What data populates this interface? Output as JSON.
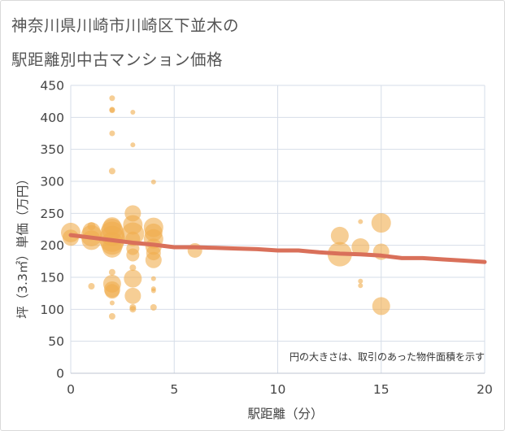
{
  "title_line1": "神奈川県川崎市川崎区下並木の",
  "title_line2": "駅距離別中古マンション価格",
  "chart_data": {
    "type": "scatter",
    "title": "神奈川県川崎市川崎区下並木の駅距離別中古マンション価格",
    "xlabel": "駅距離（分）",
    "ylabel": "坪（3.3㎡）単価（万円）",
    "xlim": [
      0,
      20
    ],
    "ylim": [
      0,
      450
    ],
    "xticks": [
      0,
      5,
      10,
      15,
      20
    ],
    "yticks": [
      0,
      50,
      100,
      150,
      200,
      250,
      300,
      350,
      400,
      450
    ],
    "note": "円の大きさは、取引のあった物件面積を示す",
    "colors": {
      "bubble": "#f0ad4e",
      "trend": "#d9705a",
      "grid": "#d6dde8"
    },
    "series": [
      {
        "name": "取引",
        "points": [
          {
            "x": 0,
            "y": 220,
            "s": 12
          },
          {
            "x": 0,
            "y": 212,
            "s": 10
          },
          {
            "x": 1,
            "y": 222,
            "s": 11
          },
          {
            "x": 1,
            "y": 215,
            "s": 13
          },
          {
            "x": 1,
            "y": 208,
            "s": 12
          },
          {
            "x": 1,
            "y": 230,
            "s": 5
          },
          {
            "x": 1,
            "y": 136,
            "s": 4
          },
          {
            "x": 2,
            "y": 430,
            "s": 3.5
          },
          {
            "x": 2,
            "y": 412,
            "s": 3.5
          },
          {
            "x": 2,
            "y": 411,
            "s": 3.5
          },
          {
            "x": 2,
            "y": 375,
            "s": 3.5
          },
          {
            "x": 2,
            "y": 316,
            "s": 4
          },
          {
            "x": 2,
            "y": 230,
            "s": 11
          },
          {
            "x": 2,
            "y": 225,
            "s": 13
          },
          {
            "x": 2,
            "y": 218,
            "s": 15
          },
          {
            "x": 2,
            "y": 210,
            "s": 16
          },
          {
            "x": 2,
            "y": 203,
            "s": 14
          },
          {
            "x": 2,
            "y": 196,
            "s": 12
          },
          {
            "x": 2,
            "y": 158,
            "s": 4
          },
          {
            "x": 2,
            "y": 140,
            "s": 11
          },
          {
            "x": 2,
            "y": 131,
            "s": 10
          },
          {
            "x": 2,
            "y": 128,
            "s": 9
          },
          {
            "x": 2,
            "y": 110,
            "s": 3
          },
          {
            "x": 2,
            "y": 89,
            "s": 4
          },
          {
            "x": 3,
            "y": 408,
            "s": 3
          },
          {
            "x": 3,
            "y": 357,
            "s": 3
          },
          {
            "x": 3,
            "y": 250,
            "s": 10
          },
          {
            "x": 3,
            "y": 232,
            "s": 12
          },
          {
            "x": 3,
            "y": 218,
            "s": 14
          },
          {
            "x": 3,
            "y": 210,
            "s": 9
          },
          {
            "x": 3,
            "y": 195,
            "s": 8
          },
          {
            "x": 3,
            "y": 185,
            "s": 8
          },
          {
            "x": 3,
            "y": 165,
            "s": 4
          },
          {
            "x": 3,
            "y": 148,
            "s": 11
          },
          {
            "x": 3,
            "y": 121,
            "s": 10
          },
          {
            "x": 3,
            "y": 103,
            "s": 4
          },
          {
            "x": 3,
            "y": 100,
            "s": 4
          },
          {
            "x": 4,
            "y": 299,
            "s": 3
          },
          {
            "x": 4,
            "y": 228,
            "s": 12
          },
          {
            "x": 4,
            "y": 220,
            "s": 11
          },
          {
            "x": 4,
            "y": 210,
            "s": 12
          },
          {
            "x": 4,
            "y": 198,
            "s": 10
          },
          {
            "x": 4,
            "y": 188,
            "s": 9
          },
          {
            "x": 4,
            "y": 177,
            "s": 10
          },
          {
            "x": 4,
            "y": 148,
            "s": 3
          },
          {
            "x": 4,
            "y": 132,
            "s": 3
          },
          {
            "x": 4,
            "y": 129,
            "s": 3
          },
          {
            "x": 4,
            "y": 103,
            "s": 4
          },
          {
            "x": 6,
            "y": 192,
            "s": 9
          },
          {
            "x": 13,
            "y": 215,
            "s": 11
          },
          {
            "x": 13,
            "y": 186,
            "s": 15
          },
          {
            "x": 14,
            "y": 237,
            "s": 3
          },
          {
            "x": 14,
            "y": 197,
            "s": 11
          },
          {
            "x": 14,
            "y": 144,
            "s": 3
          },
          {
            "x": 14,
            "y": 137,
            "s": 3
          },
          {
            "x": 15,
            "y": 235,
            "s": 12
          },
          {
            "x": 15,
            "y": 190,
            "s": 10
          },
          {
            "x": 15,
            "y": 105,
            "s": 11
          }
        ]
      },
      {
        "name": "傾向線",
        "x": [
          0,
          1,
          2,
          3,
          4,
          5,
          6,
          7,
          8,
          9,
          10,
          11,
          12,
          13,
          14,
          15,
          16,
          17,
          18,
          19,
          20
        ],
        "y": [
          216,
          212,
          208,
          204,
          201,
          197,
          197,
          196,
          195,
          194,
          192,
          192,
          189,
          187,
          186,
          184,
          180,
          180,
          178,
          176,
          174
        ]
      }
    ]
  }
}
